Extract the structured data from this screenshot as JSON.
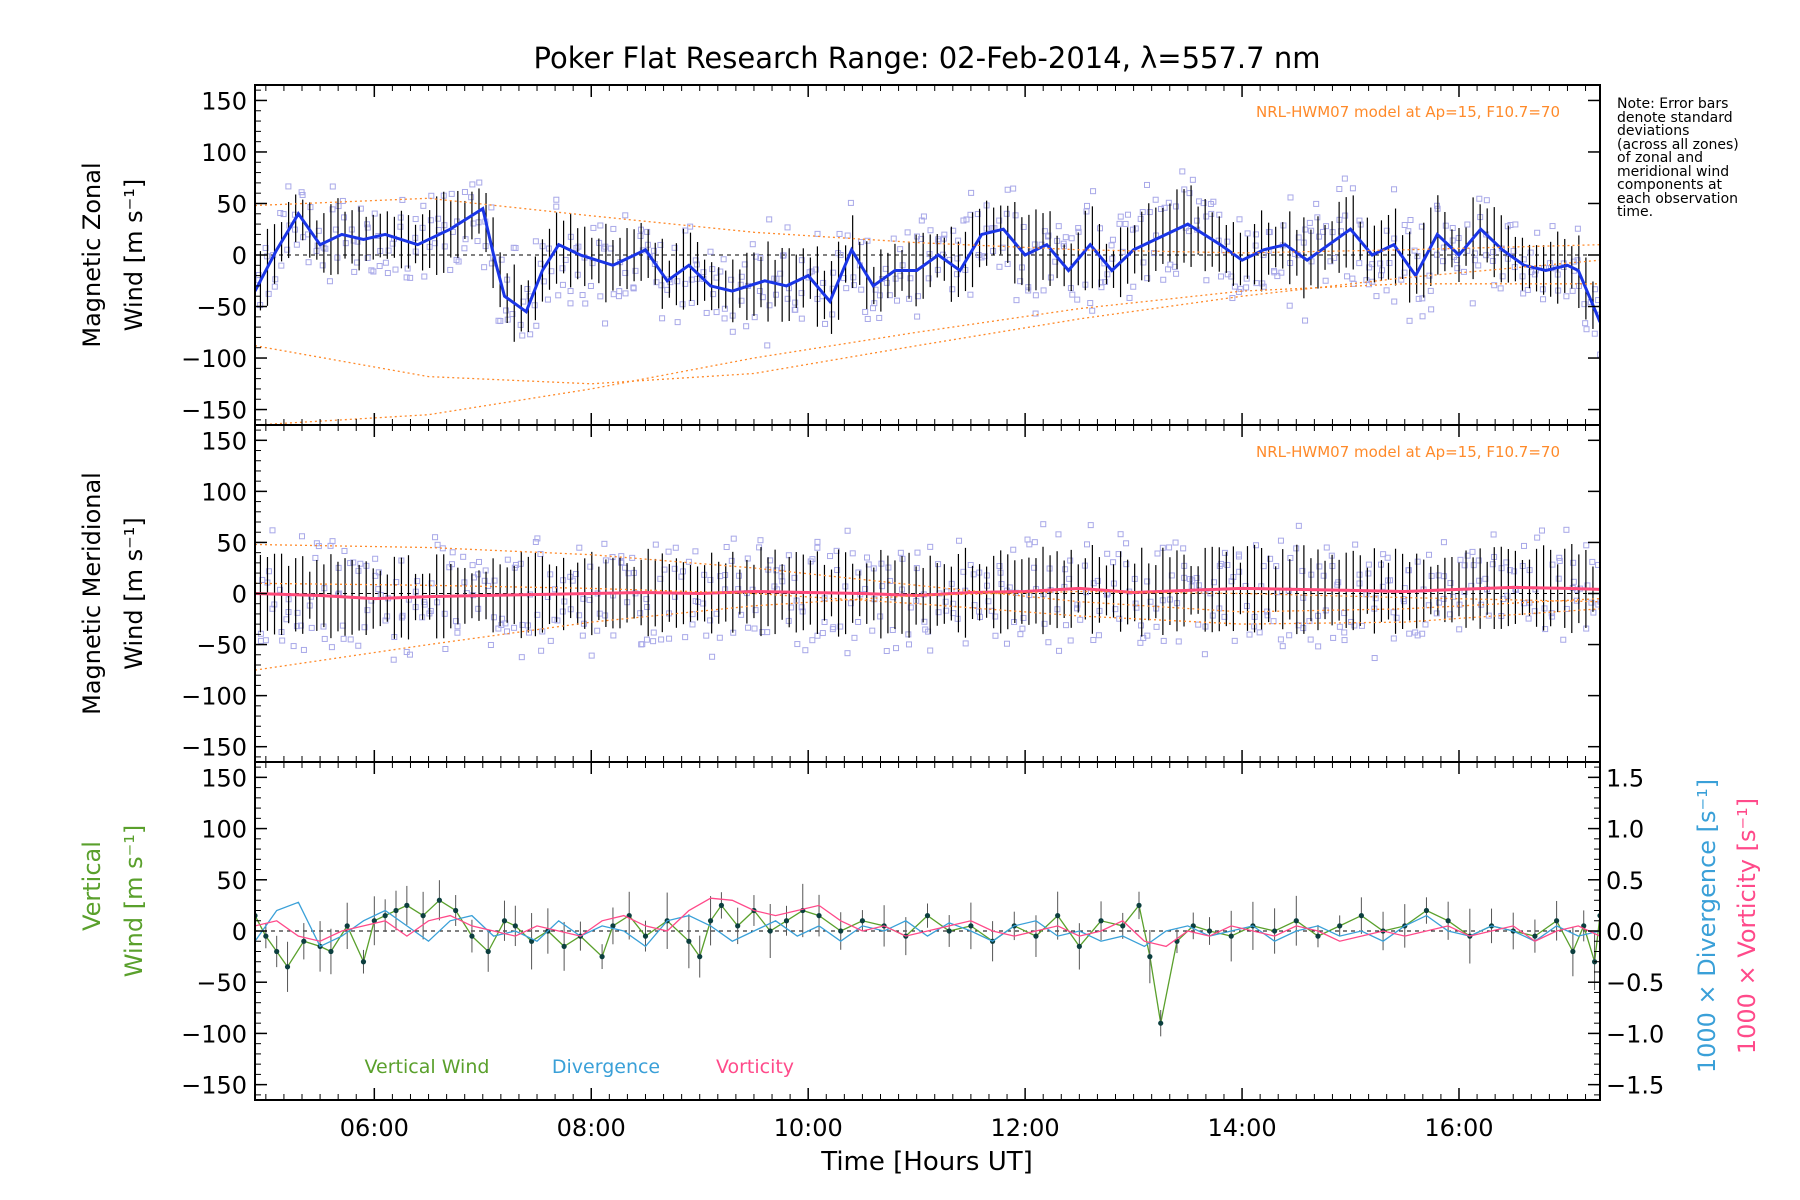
{
  "chart_data": {
    "title": "Poker Flat Research Range: 02-Feb-2014, λ=557.7 nm",
    "xlabel": "Time [Hours UT]",
    "x_unit": "hours UT",
    "xlim": [
      4.9,
      17.3
    ],
    "x_ticks": [
      {
        "value": 6,
        "label": "06:00"
      },
      {
        "value": 8,
        "label": "08:00"
      },
      {
        "value": 10,
        "label": "10:00"
      },
      {
        "value": 12,
        "label": "12:00"
      },
      {
        "value": 14,
        "label": "14:00"
      },
      {
        "value": 16,
        "label": "16:00"
      }
    ],
    "note": [
      "Note: Error bars",
      "denote standard",
      "deviations",
      "(across all zones)",
      "of zonal and",
      "meridional wind",
      "components at",
      "each observation",
      "time."
    ],
    "colors": {
      "zonal_mean": "#1a35e6",
      "meridional_mean": "#ff4a7a",
      "vertical_wind": "#5aa02c",
      "divergence": "#3aa0d8",
      "vorticity": "#ff4a8a",
      "model": "#ff8a2a",
      "zone_points": "#a8a8e8",
      "error_bars": "#000000"
    },
    "panels": [
      {
        "id": "zonal",
        "type": "line",
        "ylabel_line1": "Magnetic Zonal",
        "ylabel_line2": "Wind [m s⁻¹]",
        "ylim": [
          -165,
          165
        ],
        "yticks": [
          -150,
          -100,
          -50,
          0,
          50,
          100,
          150
        ],
        "model_label": "NRL-HWM07 model at Ap=15, F10.7=70",
        "series": [
          {
            "role": "mean",
            "x": [
              4.9,
              5.1,
              5.3,
              5.5,
              5.7,
              5.9,
              6.1,
              6.4,
              6.7,
              7.0,
              7.1,
              7.2,
              7.4,
              7.55,
              7.7,
              7.9,
              8.2,
              8.5,
              8.7,
              8.9,
              9.1,
              9.3,
              9.6,
              9.8,
              10.0,
              10.2,
              10.4,
              10.6,
              10.8,
              11.0,
              11.2,
              11.4,
              11.6,
              11.8,
              12.0,
              12.2,
              12.4,
              12.6,
              12.8,
              13.0,
              13.2,
              13.5,
              13.8,
              14.0,
              14.2,
              14.4,
              14.6,
              14.8,
              15.0,
              15.2,
              15.4,
              15.6,
              15.8,
              16.0,
              16.2,
              16.4,
              16.6,
              16.8,
              17.0,
              17.1,
              17.2,
              17.3
            ],
            "y": [
              -35,
              5,
              40,
              10,
              20,
              15,
              20,
              10,
              25,
              45,
              0,
              -40,
              -55,
              -15,
              10,
              0,
              -10,
              5,
              -25,
              -10,
              -30,
              -35,
              -25,
              -30,
              -20,
              -45,
              5,
              -30,
              -15,
              -15,
              0,
              -15,
              20,
              25,
              0,
              10,
              -15,
              10,
              -15,
              5,
              15,
              30,
              10,
              -5,
              5,
              10,
              -5,
              10,
              25,
              0,
              10,
              -20,
              20,
              0,
              25,
              5,
              -10,
              -15,
              -10,
              -15,
              -40,
              -65
            ]
          },
          {
            "role": "model",
            "x": [
              4.9,
              6.5,
              8.0,
              9.5,
              11.0,
              12.5,
              14.0,
              15.5,
              17.3
            ],
            "y": [
              -88,
              -118,
              -125,
              -115,
              -88,
              -62,
              -40,
              -22,
              -5
            ]
          },
          {
            "role": "model",
            "x": [
              4.9,
              6.5,
              8.0,
              9.5,
              11.0,
              12.5,
              14.0,
              15.5,
              17.3
            ],
            "y": [
              -165,
              -155,
              -130,
              -100,
              -75,
              -52,
              -35,
              -28,
              -28
            ]
          },
          {
            "role": "model",
            "x": [
              4.9,
              6.5,
              8.0,
              9.5,
              11.0,
              12.5,
              14.0,
              15.5,
              17.3
            ],
            "y": [
              48,
              55,
              38,
              22,
              12,
              5,
              2,
              5,
              10
            ]
          }
        ]
      },
      {
        "id": "meridional",
        "type": "line",
        "ylabel_line1": "Magnetic Meridional",
        "ylabel_line2": "Wind [m s⁻¹]",
        "ylim": [
          -165,
          165
        ],
        "yticks": [
          -150,
          -100,
          -50,
          0,
          50,
          100,
          150
        ],
        "model_label": "NRL-HWM07 model at Ap=15, F10.7=70",
        "series": [
          {
            "role": "mean",
            "x": [
              4.9,
              5.5,
              6.0,
              6.5,
              7.0,
              7.5,
              8.0,
              8.5,
              9.0,
              9.5,
              10.0,
              10.5,
              11.0,
              11.5,
              12.0,
              12.5,
              13.0,
              13.5,
              14.0,
              14.5,
              15.0,
              15.5,
              16.0,
              16.5,
              17.0,
              17.3
            ],
            "y": [
              0,
              -2,
              -5,
              -3,
              -2,
              -1,
              0,
              1,
              0,
              2,
              1,
              0,
              -2,
              1,
              2,
              5,
              1,
              3,
              5,
              4,
              3,
              2,
              4,
              6,
              5,
              4
            ]
          },
          {
            "role": "model",
            "x": [
              4.9,
              6.5,
              8.0,
              9.5,
              11.0,
              12.5,
              14.0,
              15.5,
              17.3
            ],
            "y": [
              48,
              45,
              38,
              25,
              8,
              -8,
              -18,
              -15,
              -5
            ]
          },
          {
            "role": "model",
            "x": [
              4.9,
              6.5,
              8.0,
              9.5,
              11.0,
              12.5,
              14.0,
              15.5,
              17.3
            ],
            "y": [
              -75,
              -50,
              -28,
              -12,
              -2,
              2,
              0,
              -4,
              -8
            ]
          },
          {
            "role": "model",
            "x": [
              4.9,
              6.5,
              8.0,
              9.5,
              11.0,
              12.5,
              14.0,
              15.5,
              17.3
            ],
            "y": [
              10,
              8,
              5,
              0,
              -10,
              -22,
              -30,
              -28,
              -15
            ]
          }
        ]
      },
      {
        "id": "vertical",
        "type": "line",
        "ylabel_line1": "Vertical",
        "ylabel_line2": "Wind [m s⁻¹]",
        "ylim": [
          -165,
          165
        ],
        "yticks": [
          -150,
          -100,
          -50,
          0,
          50,
          100,
          150
        ],
        "y2label_divergence": "1000 × Divergence [s⁻¹]",
        "y2label_vorticity": "1000 × Vorticity [s⁻¹]",
        "y2lim": [
          -1.65,
          1.65
        ],
        "y2ticks": [
          {
            "value": -1.5,
            "label": "−1.5"
          },
          {
            "value": -1.0,
            "label": "−1.0"
          },
          {
            "value": -0.5,
            "label": "−0.5"
          },
          {
            "value": 0.0,
            "label": "0.0"
          },
          {
            "value": 0.5,
            "label": "0.5"
          },
          {
            "value": 1.0,
            "label": "1.0"
          },
          {
            "value": 1.5,
            "label": "1.5"
          }
        ],
        "legend": [
          "Vertical Wind",
          "Divergence",
          "Vorticity"
        ],
        "series": [
          {
            "name": "Vertical Wind",
            "axis": "left",
            "x": [
              4.9,
              5.0,
              5.1,
              5.2,
              5.35,
              5.5,
              5.6,
              5.75,
              5.9,
              6.0,
              6.1,
              6.2,
              6.3,
              6.45,
              6.6,
              6.75,
              6.9,
              7.05,
              7.2,
              7.3,
              7.45,
              7.6,
              7.75,
              7.9,
              8.1,
              8.2,
              8.35,
              8.5,
              8.7,
              8.9,
              9.0,
              9.1,
              9.2,
              9.35,
              9.5,
              9.65,
              9.8,
              9.95,
              10.1,
              10.3,
              10.5,
              10.7,
              10.9,
              11.1,
              11.3,
              11.5,
              11.7,
              11.9,
              12.1,
              12.3,
              12.5,
              12.7,
              12.9,
              13.05,
              13.15,
              13.25,
              13.4,
              13.55,
              13.7,
              13.9,
              14.1,
              14.3,
              14.5,
              14.7,
              14.9,
              15.1,
              15.3,
              15.5,
              15.7,
              15.9,
              16.1,
              16.3,
              16.5,
              16.7,
              16.9,
              17.05,
              17.15,
              17.25,
              17.3
            ],
            "y": [
              15,
              -5,
              -20,
              -35,
              -10,
              -15,
              -20,
              5,
              -30,
              10,
              15,
              20,
              25,
              15,
              30,
              20,
              -5,
              -20,
              10,
              5,
              -10,
              0,
              -15,
              -5,
              -25,
              5,
              15,
              -5,
              10,
              -10,
              -25,
              10,
              25,
              5,
              20,
              0,
              10,
              20,
              15,
              0,
              10,
              5,
              -5,
              15,
              0,
              5,
              -10,
              5,
              -5,
              15,
              -15,
              10,
              5,
              25,
              -25,
              -90,
              -10,
              5,
              0,
              -5,
              5,
              0,
              10,
              -5,
              5,
              15,
              0,
              5,
              20,
              10,
              -5,
              5,
              0,
              -5,
              10,
              -20,
              5,
              -30,
              15
            ]
          },
          {
            "name": "Divergence",
            "axis": "right",
            "x": [
              4.9,
              5.1,
              5.3,
              5.5,
              5.7,
              5.9,
              6.1,
              6.3,
              6.5,
              6.7,
              6.9,
              7.1,
              7.3,
              7.5,
              7.7,
              7.9,
              8.1,
              8.3,
              8.5,
              8.7,
              8.9,
              9.1,
              9.3,
              9.5,
              9.7,
              9.9,
              10.1,
              10.3,
              10.5,
              10.7,
              10.9,
              11.1,
              11.3,
              11.5,
              11.7,
              11.9,
              12.1,
              12.3,
              12.5,
              12.7,
              12.9,
              13.1,
              13.3,
              13.5,
              13.7,
              13.9,
              14.1,
              14.3,
              14.5,
              14.7,
              14.9,
              15.1,
              15.3,
              15.5,
              15.7,
              15.9,
              16.1,
              16.3,
              16.5,
              16.7,
              16.9,
              17.1,
              17.3
            ],
            "y": [
              -0.1,
              0.2,
              0.28,
              -0.15,
              -0.05,
              0.1,
              0.2,
              0.05,
              -0.1,
              0.1,
              0.15,
              -0.05,
              0.0,
              -0.1,
              0.1,
              -0.05,
              0.05,
              0.0,
              -0.15,
              0.1,
              0.15,
              0.05,
              -0.1,
              0.0,
              0.1,
              -0.05,
              0.05,
              -0.1,
              0.05,
              0.0,
              0.1,
              -0.05,
              0.08,
              0.0,
              -0.1,
              0.05,
              0.1,
              -0.05,
              0.0,
              -0.1,
              -0.05,
              -0.15,
              0.0,
              0.05,
              -0.05,
              0.0,
              0.05,
              -0.1,
              0.0,
              0.05,
              -0.05,
              0.0,
              -0.1,
              0.05,
              0.15,
              0.0,
              -0.05,
              0.05,
              0.0,
              -0.1,
              0.05,
              -0.05,
              0.0
            ]
          },
          {
            "name": "Vorticity",
            "axis": "right",
            "x": [
              4.9,
              5.1,
              5.3,
              5.5,
              5.7,
              5.9,
              6.1,
              6.3,
              6.5,
              6.7,
              6.9,
              7.1,
              7.3,
              7.5,
              7.7,
              7.9,
              8.1,
              8.3,
              8.5,
              8.7,
              8.9,
              9.1,
              9.3,
              9.5,
              9.7,
              9.9,
              10.1,
              10.3,
              10.5,
              10.7,
              10.9,
              11.1,
              11.3,
              11.5,
              11.7,
              11.9,
              12.1,
              12.3,
              12.5,
              12.7,
              12.9,
              13.1,
              13.3,
              13.5,
              13.7,
              13.9,
              14.1,
              14.3,
              14.5,
              14.7,
              14.9,
              15.1,
              15.3,
              15.5,
              15.7,
              15.9,
              16.1,
              16.3,
              16.5,
              16.7,
              16.9,
              17.1,
              17.3
            ],
            "y": [
              0.05,
              0.1,
              -0.05,
              -0.1,
              0.0,
              0.05,
              0.1,
              -0.05,
              0.1,
              0.15,
              0.05,
              0.0,
              -0.05,
              0.05,
              0.0,
              -0.05,
              0.1,
              0.15,
              0.05,
              0.0,
              0.2,
              0.32,
              0.3,
              0.2,
              0.15,
              0.2,
              0.25,
              0.1,
              0.0,
              0.05,
              -0.05,
              0.0,
              0.05,
              0.1,
              0.0,
              -0.05,
              0.0,
              0.05,
              -0.05,
              0.0,
              0.1,
              -0.1,
              -0.15,
              0.0,
              -0.05,
              0.05,
              0.0,
              -0.05,
              0.05,
              0.0,
              -0.1,
              -0.05,
              0.0,
              -0.05,
              0.0,
              0.05,
              -0.05,
              0.0,
              0.05,
              -0.1,
              0.0,
              0.05,
              -0.05
            ]
          }
        ]
      }
    ]
  }
}
